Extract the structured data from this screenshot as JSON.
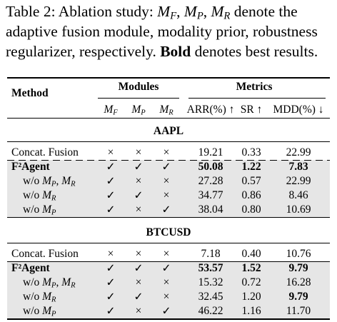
{
  "caption": {
    "parts": [
      "Table 2: Ablation study: ",
      {
        "symbol": "M",
        "sub": "F"
      },
      ", ",
      {
        "symbol": "M",
        "sub": "P"
      },
      ", ",
      {
        "symbol": "M",
        "sub": "R"
      },
      "denote the",
      "adaptive fusion module, modality prior, robustness",
      "regularizer, respectively.",
      "Bold",
      "denotes best results."
    ]
  },
  "table": {
    "header": {
      "method": "Method",
      "modules": "Modules",
      "metrics": "Metrics",
      "columns": [
        {
          "symbol": "M",
          "sub": "F"
        },
        {
          "symbol": "M",
          "sub": "P"
        },
        {
          "symbol": "M",
          "sub": "R"
        },
        "ARR(%) ↑",
        "SR ↑",
        "MDD(%) ↓"
      ]
    },
    "groups": [
      {
        "name": "AAPL",
        "rows": [
          {
            "method": [
              "Concat. Fusion"
            ],
            "cells": [
              "×",
              "×",
              "×",
              "19.21",
              "0.33",
              "22.99"
            ],
            "bold_method": false,
            "bold_cells": [],
            "shaded": false
          },
          {
            "method": [
              "F²Agent"
            ],
            "cells": [
              "✓",
              "✓",
              "✓",
              "50.08",
              "1.22",
              "7.83"
            ],
            "bold_method": true,
            "bold_cells": [
              3,
              4,
              5
            ],
            "shaded": true
          },
          {
            "method": [
              "w/o ",
              {
                "symbol": "M",
                "sub": "P"
              },
              ", ",
              {
                "symbol": "M",
                "sub": "R"
              }
            ],
            "cells": [
              "✓",
              "×",
              "×",
              "27.28",
              "0.57",
              "22.99"
            ],
            "bold_method": false,
            "bold_cells": [],
            "shaded": true
          },
          {
            "method": [
              "w/o ",
              {
                "symbol": "M",
                "sub": "R"
              }
            ],
            "cells": [
              "✓",
              "✓",
              "×",
              "34.77",
              "0.86",
              "8.46"
            ],
            "bold_method": false,
            "bold_cells": [],
            "shaded": true
          },
          {
            "method": [
              "w/o ",
              {
                "symbol": "M",
                "sub": "P"
              }
            ],
            "cells": [
              "✓",
              "×",
              "✓",
              "38.04",
              "0.80",
              "10.69"
            ],
            "bold_method": false,
            "bold_cells": [],
            "shaded": true
          }
        ]
      },
      {
        "name": "BTCUSD",
        "rows": [
          {
            "method": [
              "Concat. Fusion"
            ],
            "cells": [
              "×",
              "×",
              "×",
              "7.18",
              "0.40",
              "10.76"
            ],
            "bold_method": false,
            "bold_cells": [],
            "shaded": false
          },
          {
            "method": [
              "F²Agent"
            ],
            "cells": [
              "✓",
              "✓",
              "✓",
              "53.57",
              "1.52",
              "9.79"
            ],
            "bold_method": true,
            "bold_cells": [
              3,
              4,
              5
            ],
            "shaded": true
          },
          {
            "method": [
              "w/o ",
              {
                "symbol": "M",
                "sub": "P"
              },
              ", ",
              {
                "symbol": "M",
                "sub": "R"
              }
            ],
            "cells": [
              "✓",
              "×",
              "×",
              "15.32",
              "0.72",
              "16.28"
            ],
            "bold_method": false,
            "bold_cells": [],
            "shaded": true
          },
          {
            "method": [
              "w/o ",
              {
                "symbol": "M",
                "sub": "R"
              }
            ],
            "cells": [
              "✓",
              "✓",
              "×",
              "32.45",
              "1.20",
              "9.79"
            ],
            "bold_method": false,
            "bold_cells": [
              5
            ],
            "shaded": true
          },
          {
            "method": [
              "w/o ",
              {
                "symbol": "M",
                "sub": "P"
              }
            ],
            "cells": [
              "✓",
              "×",
              "✓",
              "46.22",
              "1.16",
              "11.70"
            ],
            "bold_method": false,
            "bold_cells": [],
            "shaded": true
          }
        ]
      }
    ]
  }
}
